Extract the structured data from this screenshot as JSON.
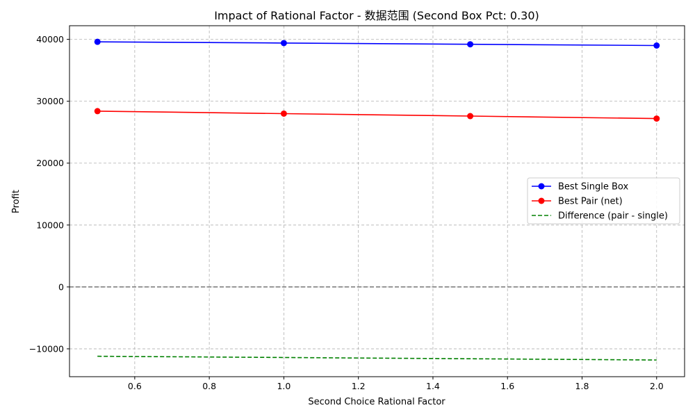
{
  "chart_data": {
    "type": "line",
    "title": "Impact of Rational Factor - 数据范围 (Second Box Pct: 0.30)",
    "xlabel": "Second Choice Rational Factor",
    "ylabel": "Profit",
    "xlim": [
      0.425,
      2.075
    ],
    "ylim": [
      -14500,
      42200
    ],
    "xticks": [
      0.6,
      0.8,
      1.0,
      1.2,
      1.4,
      1.6,
      1.8,
      2.0
    ],
    "xtick_labels": [
      "0.6",
      "0.8",
      "1.0",
      "1.2",
      "1.4",
      "1.6",
      "1.8",
      "2.0"
    ],
    "yticks": [
      -10000,
      0,
      10000,
      20000,
      30000,
      40000
    ],
    "ytick_labels": [
      "−10000",
      "0",
      "10000",
      "20000",
      "30000",
      "40000"
    ],
    "grid": true,
    "legend_position": "center-right",
    "x": [
      0.5,
      1.0,
      1.5,
      2.0
    ],
    "series": [
      {
        "name": "Best Single Box",
        "values": [
          39600,
          39400,
          39200,
          39000
        ],
        "color": "#0000ff",
        "style": "solid",
        "marker": "circle"
      },
      {
        "name": "Best Pair (net)",
        "values": [
          28400,
          28000,
          27600,
          27200
        ],
        "color": "#ff0000",
        "style": "solid",
        "marker": "circle"
      },
      {
        "name": "Difference (pair - single)",
        "values": [
          -11200,
          -11400,
          -11600,
          -11800
        ],
        "color": "#008000",
        "style": "dashed",
        "marker": "none"
      }
    ],
    "reference_line": {
      "y": 0,
      "color": "#808080",
      "style": "dashed"
    }
  }
}
